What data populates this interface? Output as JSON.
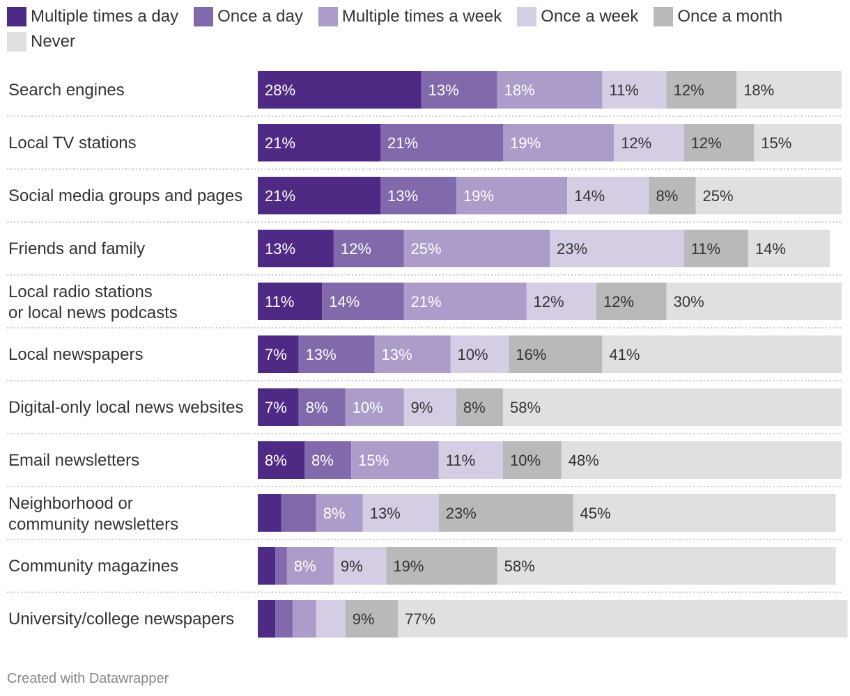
{
  "chart_data": {
    "type": "bar",
    "orientation": "horizontal",
    "stacked": true,
    "legend_position": "top",
    "series": [
      {
        "name": "Multiple times a day",
        "color": "#4f2a85"
      },
      {
        "name": "Once a day",
        "color": "#806aab"
      },
      {
        "name": "Multiple times a week",
        "color": "#ab9cc9"
      },
      {
        "name": "Once a week",
        "color": "#d4cde3"
      },
      {
        "name": "Once a month",
        "color": "#b8b9ba"
      },
      {
        "name": "Never",
        "color": "#e0e0e0"
      }
    ],
    "categories": [
      {
        "label": "Search engines",
        "values": [
          28,
          13,
          18,
          11,
          12,
          18
        ],
        "labels": [
          "28%",
          "13%",
          "18%",
          "11%",
          "12%",
          "18%"
        ]
      },
      {
        "label": "Local TV stations",
        "values": [
          21,
          21,
          19,
          12,
          12,
          15
        ],
        "labels": [
          "21%",
          "21%",
          "19%",
          "12%",
          "12%",
          "15%"
        ]
      },
      {
        "label": "Social media groups and pages",
        "values": [
          21,
          13,
          19,
          14,
          8,
          25
        ],
        "labels": [
          "21%",
          "13%",
          "19%",
          "14%",
          "8%",
          "25%"
        ]
      },
      {
        "label": "Friends and family",
        "values": [
          13,
          12,
          25,
          23,
          11,
          14
        ],
        "labels": [
          "13%",
          "12%",
          "25%",
          "23%",
          "11%",
          "14%"
        ]
      },
      {
        "label": "Local radio stations\nor local news podcasts",
        "values": [
          11,
          14,
          21,
          12,
          12,
          30
        ],
        "labels": [
          "11%",
          "14%",
          "21%",
          "12%",
          "12%",
          "30%"
        ]
      },
      {
        "label": "Local newspapers",
        "values": [
          7,
          13,
          13,
          10,
          16,
          41
        ],
        "labels": [
          "7%",
          "13%",
          "13%",
          "10%",
          "16%",
          "41%"
        ]
      },
      {
        "label": "Digital-only local news websites",
        "values": [
          7,
          8,
          10,
          9,
          8,
          58
        ],
        "labels": [
          "7%",
          "8%",
          "10%",
          "9%",
          "8%",
          "58%"
        ]
      },
      {
        "label": "Email newsletters",
        "values": [
          8,
          8,
          15,
          11,
          10,
          48
        ],
        "labels": [
          "8%",
          "8%",
          "15%",
          "11%",
          "10%",
          "48%"
        ]
      },
      {
        "label": "Neighborhood or\ncommunity newsletters",
        "values": [
          4,
          6,
          8,
          13,
          23,
          45
        ],
        "labels": [
          "",
          "",
          "8%",
          "13%",
          "23%",
          "45%"
        ]
      },
      {
        "label": "Community magazines",
        "values": [
          3,
          2,
          8,
          9,
          19,
          58
        ],
        "labels": [
          "",
          "",
          "8%",
          "9%",
          "19%",
          "58%"
        ]
      },
      {
        "label": "University/college newspapers",
        "values": [
          3,
          3,
          4,
          5,
          9,
          77
        ],
        "labels": [
          "",
          "",
          "",
          "",
          "9%",
          "77%"
        ]
      }
    ],
    "xlim": [
      0,
      100
    ],
    "unit": "%"
  },
  "footer": {
    "credit": "Created with Datawrapper"
  }
}
